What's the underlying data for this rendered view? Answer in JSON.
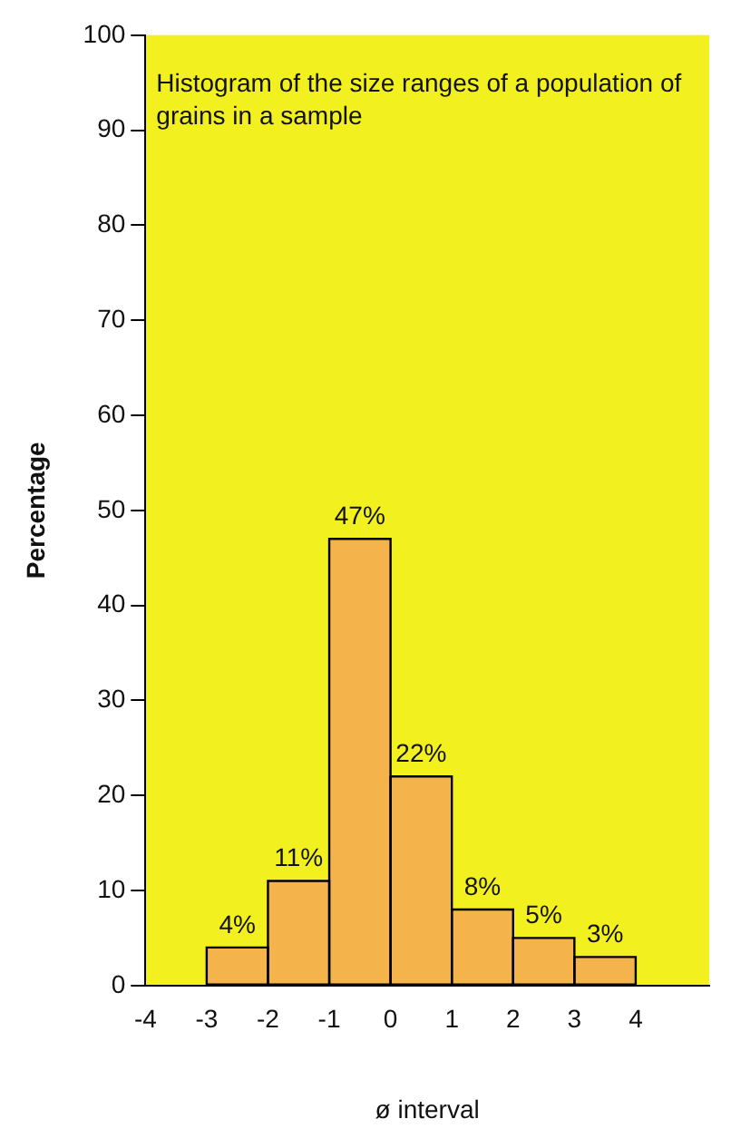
{
  "chart_data": {
    "type": "histogram",
    "title": "Histogram of the size ranges of a population of grains in a sample",
    "xlabel": "ø interval",
    "ylabel": "Percentage",
    "bins": [
      -3,
      -2,
      -1,
      0,
      1,
      2,
      3,
      4
    ],
    "values": [
      4,
      11,
      47,
      22,
      8,
      5,
      3
    ],
    "value_labels": [
      "4%",
      "11%",
      "47%",
      "22%",
      "8%",
      "5%",
      "3%"
    ],
    "color": "#f5b34c",
    "xlim": [
      -4,
      5.2
    ],
    "xticks": [
      -4,
      -3,
      -2,
      -1,
      0,
      1,
      2,
      3,
      4
    ],
    "ylim": [
      0,
      100
    ],
    "yticks": [
      0,
      10,
      20,
      30,
      40,
      50,
      60,
      70,
      80,
      90,
      100
    ],
    "grid": false,
    "legend": false
  }
}
